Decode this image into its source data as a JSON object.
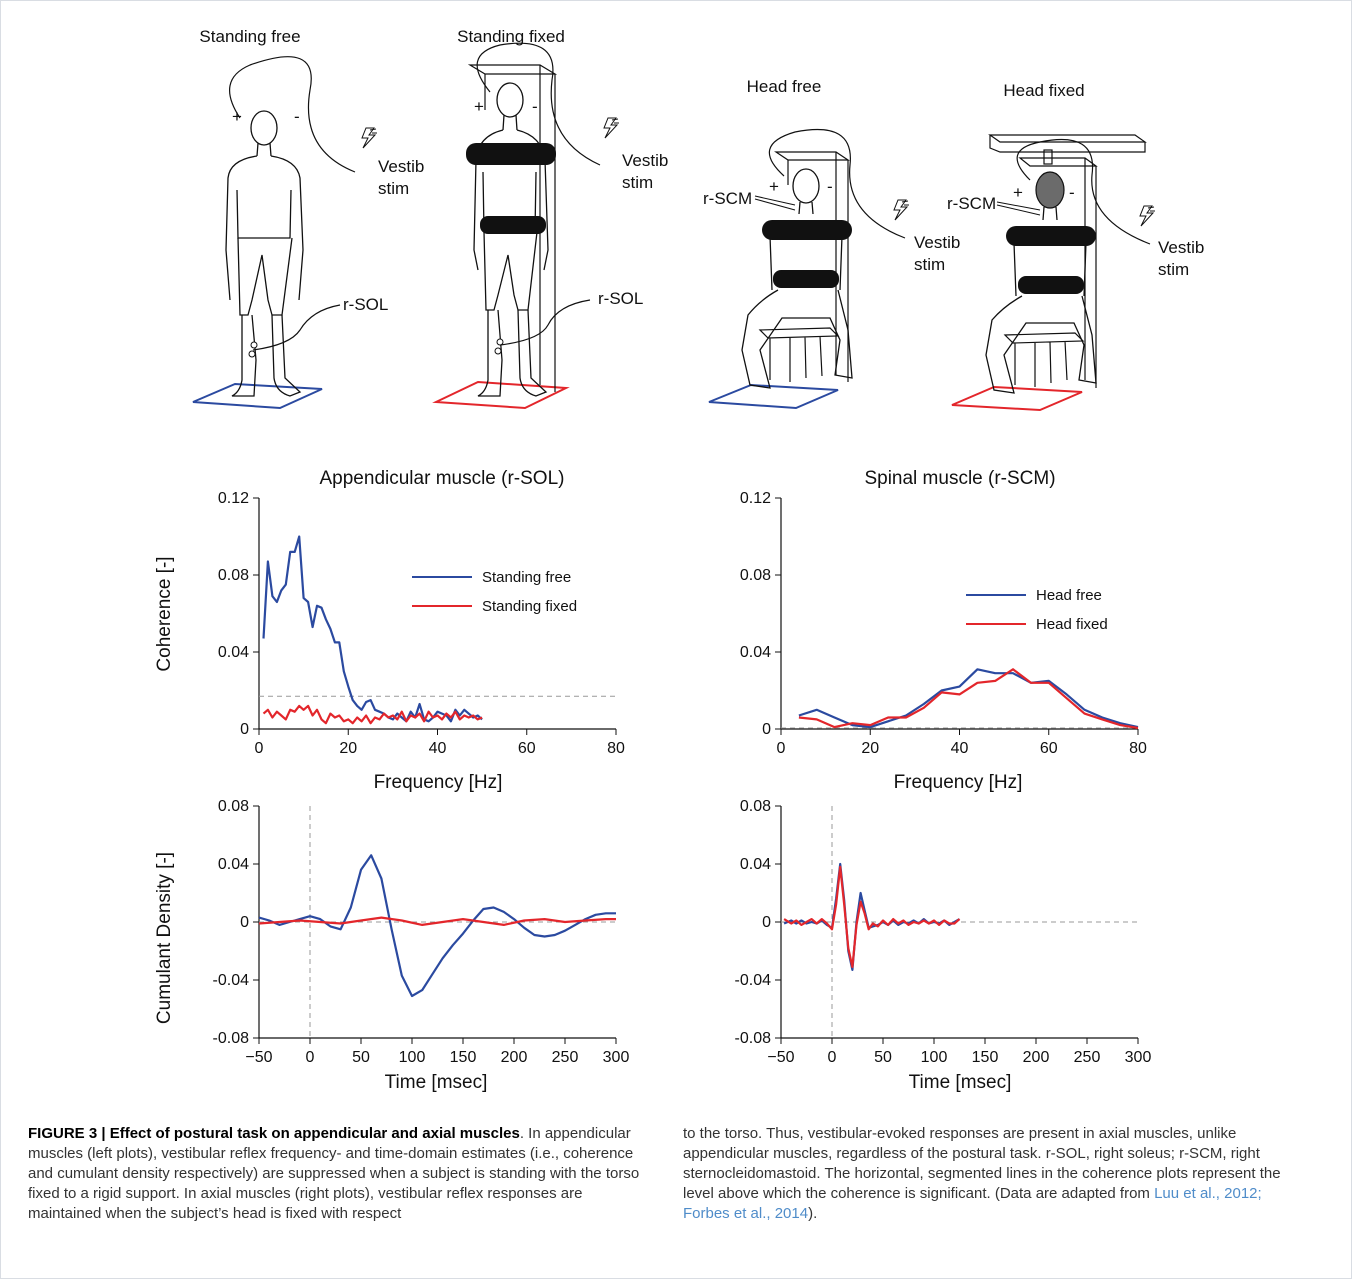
{
  "illustration": {
    "panels": [
      {
        "name": "standing-free",
        "title": "Standing free",
        "color": "#2b4aa0"
      },
      {
        "name": "standing-fixed",
        "title": "Standing fixed",
        "color": "#e3262b"
      },
      {
        "name": "head-free",
        "title": "Head free",
        "color": "#2b4aa0"
      },
      {
        "name": "head-fixed",
        "title": "Head fixed",
        "color": "#e3262b"
      }
    ],
    "labels": {
      "vestib": "Vestib",
      "stim": "stim",
      "sol": "r-SOL",
      "scm": "r-SCM",
      "plus": "+",
      "minus": "-"
    }
  },
  "charts": {
    "coh_left": {
      "title": "Appendicular muscle (r-SOL)"
    },
    "coh_right": {
      "title": "Spinal muscle (r-SCM)"
    },
    "coherence_ylabel": "Coherence [-]",
    "frequency_xlabel": "Frequency [Hz]",
    "cumulant_ylabel": "Cumulant Density [-]",
    "time_xlabel": "Time [msec]",
    "coh_yticks": [
      "0",
      "0.04",
      "0.08",
      "0.12"
    ],
    "coh_xticks": [
      "0",
      "20",
      "40",
      "60",
      "80"
    ],
    "cum_yticks": [
      "-0.08",
      "-0.04",
      "0",
      "0.04",
      "0.08"
    ],
    "cum_xticks": [
      "−50",
      "0",
      "50",
      "100",
      "150",
      "200",
      "250",
      "300"
    ],
    "legend_left": [
      "Standing free",
      "Standing fixed"
    ],
    "legend_right": [
      "Head free",
      "Head fixed"
    ]
  },
  "chart_data": [
    {
      "type": "line",
      "title": "Appendicular muscle (r-SOL)",
      "xlabel": "Frequency [Hz]",
      "ylabel": "Coherence [-]",
      "xlim": [
        0,
        80
      ],
      "ylim": [
        0,
        0.12
      ],
      "legend": "top-right",
      "significance_level": 0.017,
      "series": [
        {
          "name": "Standing free",
          "color": "#2b4aa0",
          "x": [
            1,
            2,
            3,
            4,
            5,
            6,
            7,
            8,
            9,
            10,
            11,
            12,
            13,
            14,
            15,
            16,
            17,
            18,
            19,
            20,
            21,
            22,
            23,
            24,
            25,
            26,
            27,
            28,
            29,
            30,
            31,
            32,
            33,
            34,
            35,
            36,
            37,
            38,
            39,
            40,
            41,
            42,
            43,
            44,
            45,
            46,
            47,
            48,
            49,
            50
          ],
          "y": [
            0.047,
            0.087,
            0.069,
            0.066,
            0.072,
            0.075,
            0.092,
            0.092,
            0.1,
            0.068,
            0.066,
            0.053,
            0.064,
            0.063,
            0.057,
            0.052,
            0.045,
            0.045,
            0.03,
            0.022,
            0.015,
            0.012,
            0.01,
            0.014,
            0.015,
            0.01,
            0.009,
            0.008,
            0.006,
            0.005,
            0.008,
            0.006,
            0.004,
            0.009,
            0.006,
            0.013,
            0.005,
            0.004,
            0.006,
            0.009,
            0.008,
            0.007,
            0.004,
            0.01,
            0.007,
            0.01,
            0.008,
            0.006,
            0.007,
            0.005
          ]
        },
        {
          "name": "Standing fixed",
          "color": "#e3262b",
          "x": [
            1,
            2,
            3,
            4,
            5,
            6,
            7,
            8,
            9,
            10,
            11,
            12,
            13,
            14,
            15,
            16,
            17,
            18,
            19,
            20,
            21,
            22,
            23,
            24,
            25,
            26,
            27,
            28,
            29,
            30,
            31,
            32,
            33,
            34,
            35,
            36,
            37,
            38,
            39,
            40,
            41,
            42,
            43,
            44,
            45,
            46,
            47,
            48,
            49,
            50
          ],
          "y": [
            0.008,
            0.01,
            0.006,
            0.009,
            0.007,
            0.005,
            0.01,
            0.009,
            0.012,
            0.01,
            0.012,
            0.007,
            0.01,
            0.005,
            0.003,
            0.008,
            0.006,
            0.007,
            0.004,
            0.005,
            0.003,
            0.006,
            0.004,
            0.007,
            0.003,
            0.006,
            0.005,
            0.008,
            0.006,
            0.007,
            0.005,
            0.009,
            0.004,
            0.007,
            0.006,
            0.008,
            0.004,
            0.009,
            0.006,
            0.007,
            0.005,
            0.008,
            0.006,
            0.009,
            0.005,
            0.007,
            0.006,
            0.007,
            0.005,
            0.006
          ]
        }
      ]
    },
    {
      "type": "line",
      "title": "Spinal muscle (r-SCM)",
      "xlabel": "Frequency [Hz]",
      "ylabel": "Coherence [-]",
      "xlim": [
        0,
        80
      ],
      "ylim": [
        0,
        0.12
      ],
      "legend": "right",
      "significance_level": 0.0005,
      "series": [
        {
          "name": "Head free",
          "color": "#2b4aa0",
          "x": [
            4,
            8,
            12,
            16,
            20,
            24,
            28,
            32,
            36,
            40,
            44,
            48,
            52,
            56,
            60,
            64,
            68,
            72,
            76,
            80
          ],
          "y": [
            0.007,
            0.01,
            0.006,
            0.002,
            0.001,
            0.004,
            0.007,
            0.013,
            0.02,
            0.022,
            0.031,
            0.029,
            0.029,
            0.024,
            0.025,
            0.018,
            0.01,
            0.006,
            0.003,
            0.001
          ]
        },
        {
          "name": "Head fixed",
          "color": "#e3262b",
          "x": [
            4,
            8,
            12,
            16,
            20,
            24,
            28,
            32,
            36,
            40,
            44,
            48,
            52,
            56,
            60,
            64,
            68,
            72,
            76,
            80
          ],
          "y": [
            0.006,
            0.005,
            0.001,
            0.003,
            0.002,
            0.006,
            0.006,
            0.011,
            0.019,
            0.018,
            0.024,
            0.025,
            0.031,
            0.024,
            0.024,
            0.016,
            0.008,
            0.005,
            0.002,
            0.0005
          ]
        }
      ]
    },
    {
      "type": "line",
      "title": "",
      "xlabel": "Time [msec]",
      "ylabel": "Cumulant Density [-]",
      "xlim": [
        -50,
        300
      ],
      "ylim": [
        -0.08,
        0.08
      ],
      "series": [
        {
          "name": "",
          "color": "#2b4aa0",
          "x": [
            -50,
            -40,
            -30,
            -20,
            -10,
            0,
            10,
            20,
            30,
            40,
            50,
            60,
            70,
            80,
            90,
            100,
            110,
            120,
            130,
            140,
            150,
            160,
            170,
            180,
            190,
            200,
            210,
            220,
            230,
            240,
            250,
            260,
            270,
            280,
            290,
            300
          ],
          "y": [
            0.003,
            0.001,
            -0.002,
            0.0,
            0.002,
            0.004,
            0.002,
            -0.003,
            -0.005,
            0.01,
            0.036,
            0.046,
            0.03,
            -0.005,
            -0.037,
            -0.051,
            -0.047,
            -0.036,
            -0.025,
            -0.016,
            -0.008,
            0.001,
            0.009,
            0.01,
            0.007,
            0.002,
            -0.004,
            -0.009,
            -0.01,
            -0.009,
            -0.006,
            -0.002,
            0.002,
            0.005,
            0.006,
            0.006
          ]
        },
        {
          "name": "",
          "color": "#e3262b",
          "x": [
            -50,
            -30,
            -10,
            10,
            30,
            50,
            70,
            90,
            110,
            130,
            150,
            170,
            190,
            210,
            230,
            250,
            270,
            290,
            300
          ],
          "y": [
            -0.001,
            0.0,
            0.001,
            0.0,
            -0.001,
            0.001,
            0.003,
            0.001,
            -0.002,
            0.0,
            0.002,
            0.0,
            -0.002,
            0.001,
            0.002,
            0.0,
            0.001,
            0.002,
            0.002
          ]
        }
      ]
    },
    {
      "type": "line",
      "title": "",
      "xlabel": "Time [msec]",
      "ylabel": "Cumulant Density [-]",
      "xlim": [
        -50,
        300
      ],
      "ylim": [
        -0.08,
        0.08
      ],
      "series": [
        {
          "name": "",
          "color": "#2b4aa0",
          "x": [
            -47,
            -40,
            -35,
            -30,
            -25,
            -20,
            -15,
            -10,
            -5,
            0,
            4,
            8,
            12,
            16,
            20,
            24,
            28,
            32,
            36,
            40,
            45,
            50,
            55,
            60,
            65,
            70,
            75,
            80,
            85,
            90,
            95,
            100,
            105,
            110,
            115,
            120,
            125
          ],
          "y": [
            -0.001,
            0.001,
            -0.001,
            0.001,
            -0.001,
            0.0,
            -0.001,
            0.001,
            -0.002,
            -0.004,
            0.016,
            0.04,
            0.015,
            -0.02,
            -0.033,
            0.0,
            0.02,
            0.008,
            -0.004,
            -0.003,
            -0.002,
            0.0,
            -0.002,
            0.001,
            -0.002,
            0.0,
            -0.001,
            0.001,
            -0.001,
            0.002,
            -0.001,
            0.0,
            -0.001,
            0.001,
            -0.002,
            0.0,
            0.002
          ]
        },
        {
          "name": "",
          "color": "#e3262b",
          "x": [
            -47,
            -40,
            -35,
            -30,
            -25,
            -20,
            -15,
            -10,
            -5,
            0,
            4,
            8,
            12,
            16,
            20,
            24,
            28,
            32,
            36,
            40,
            45,
            50,
            55,
            60,
            65,
            70,
            75,
            80,
            85,
            90,
            95,
            100,
            105,
            110,
            115,
            120,
            125
          ],
          "y": [
            0.002,
            -0.001,
            0.001,
            -0.002,
            0.0,
            0.002,
            -0.001,
            0.002,
            -0.001,
            -0.005,
            0.012,
            0.038,
            0.012,
            -0.018,
            -0.031,
            -0.002,
            0.014,
            0.006,
            -0.005,
            -0.001,
            -0.003,
            0.001,
            -0.002,
            0.002,
            -0.001,
            0.001,
            -0.002,
            0.0,
            -0.001,
            0.001,
            -0.001,
            0.001,
            -0.002,
            0.001,
            -0.001,
            -0.001,
            0.002
          ]
        }
      ]
    }
  ],
  "caption": {
    "label": "FIGURE 3 | Effect of postural task on appendicular and axial muscles",
    "left_text": ". In appendicular muscles (left plots), vestibular reflex frequency- and time-domain estimates (i.e., coherence and cumulant density respectively) are suppressed when a subject is standing with the torso fixed to a rigid support. In axial muscles (right plots), vestibular reflex responses are maintained when the subject’s head is fixed with respect",
    "right_text_a": "to the torso. Thus, vestibular-evoked responses are present in axial muscles, unlike appendicular muscles, regardless of the postural task. r-SOL, right soleus; r-SCM, right sternocleidomastoid. The horizontal, segmented lines in the coherence plots represent the level above which the coherence is significant. (Data are adapted from ",
    "ref1": "Luu et al., 2012;",
    "ref2": "Forbes et al., 2014",
    "right_text_b": ")."
  }
}
